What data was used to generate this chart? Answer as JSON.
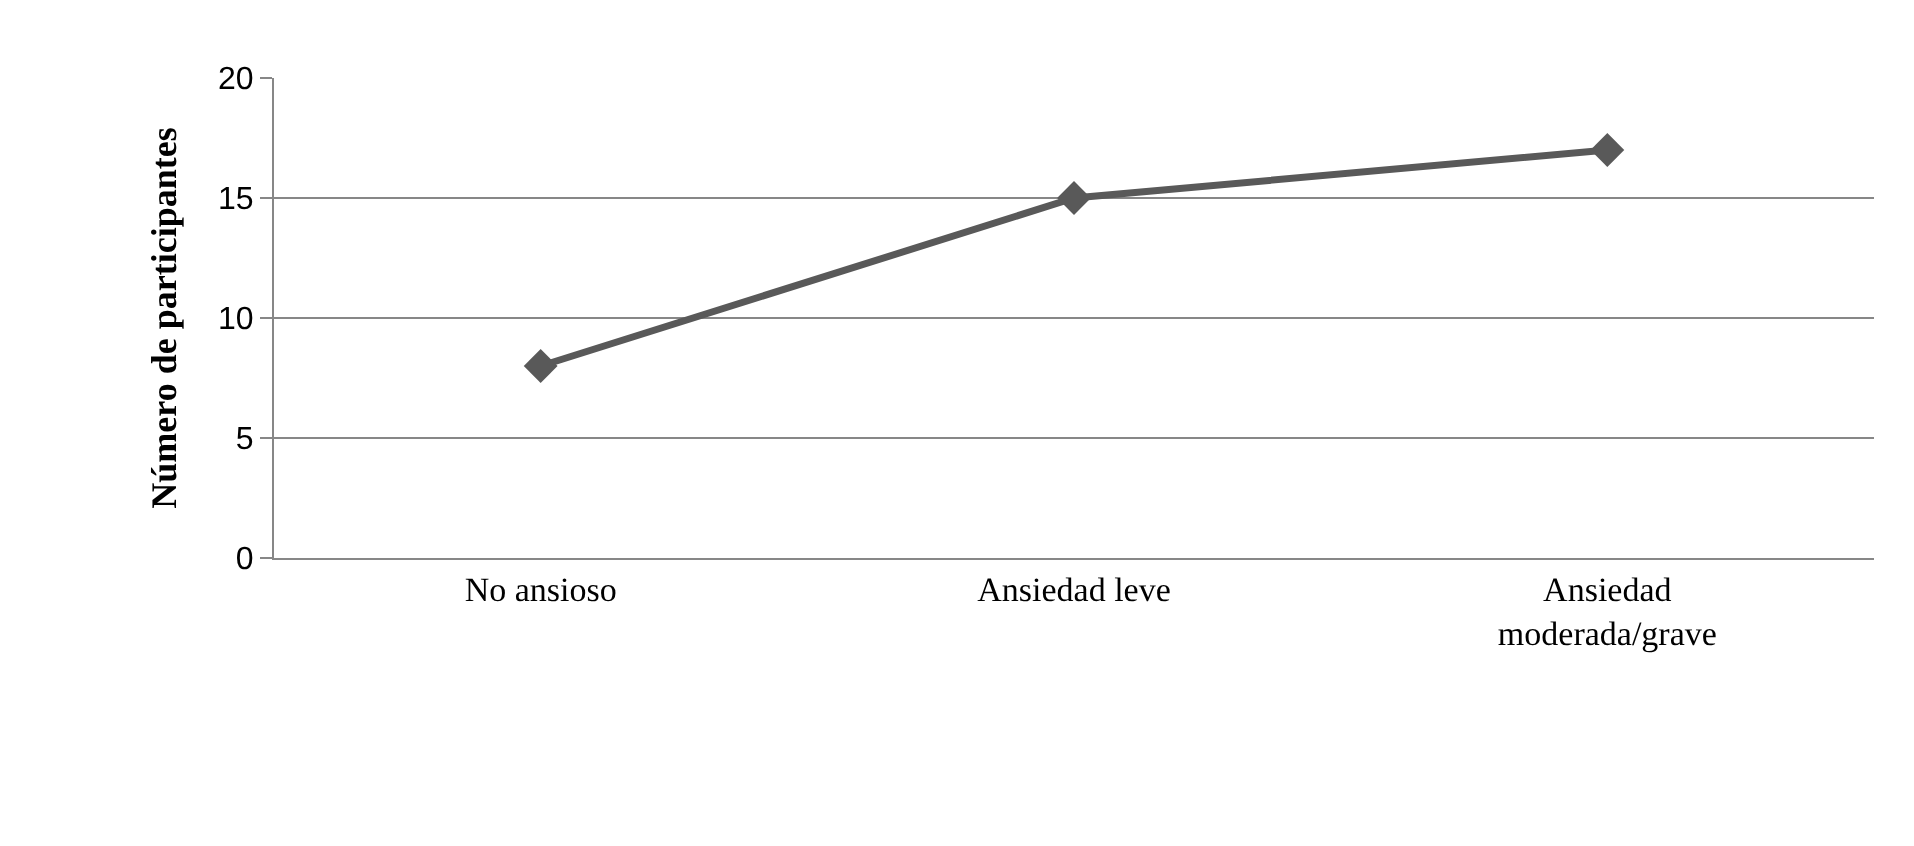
{
  "chart_data": {
    "type": "line",
    "ylabel": "Número de participantes",
    "categories": [
      "No ansioso",
      "Ansiedad leve",
      "Ansiedad moderada/grave"
    ],
    "series": [
      {
        "color": "#595959",
        "values": [
          8,
          15,
          17
        ]
      }
    ],
    "ylim": [
      0,
      20
    ],
    "yticks": [
      0,
      5,
      10,
      15,
      20
    ],
    "grid": "y",
    "marker": "diamond",
    "line_style": "solid"
  }
}
